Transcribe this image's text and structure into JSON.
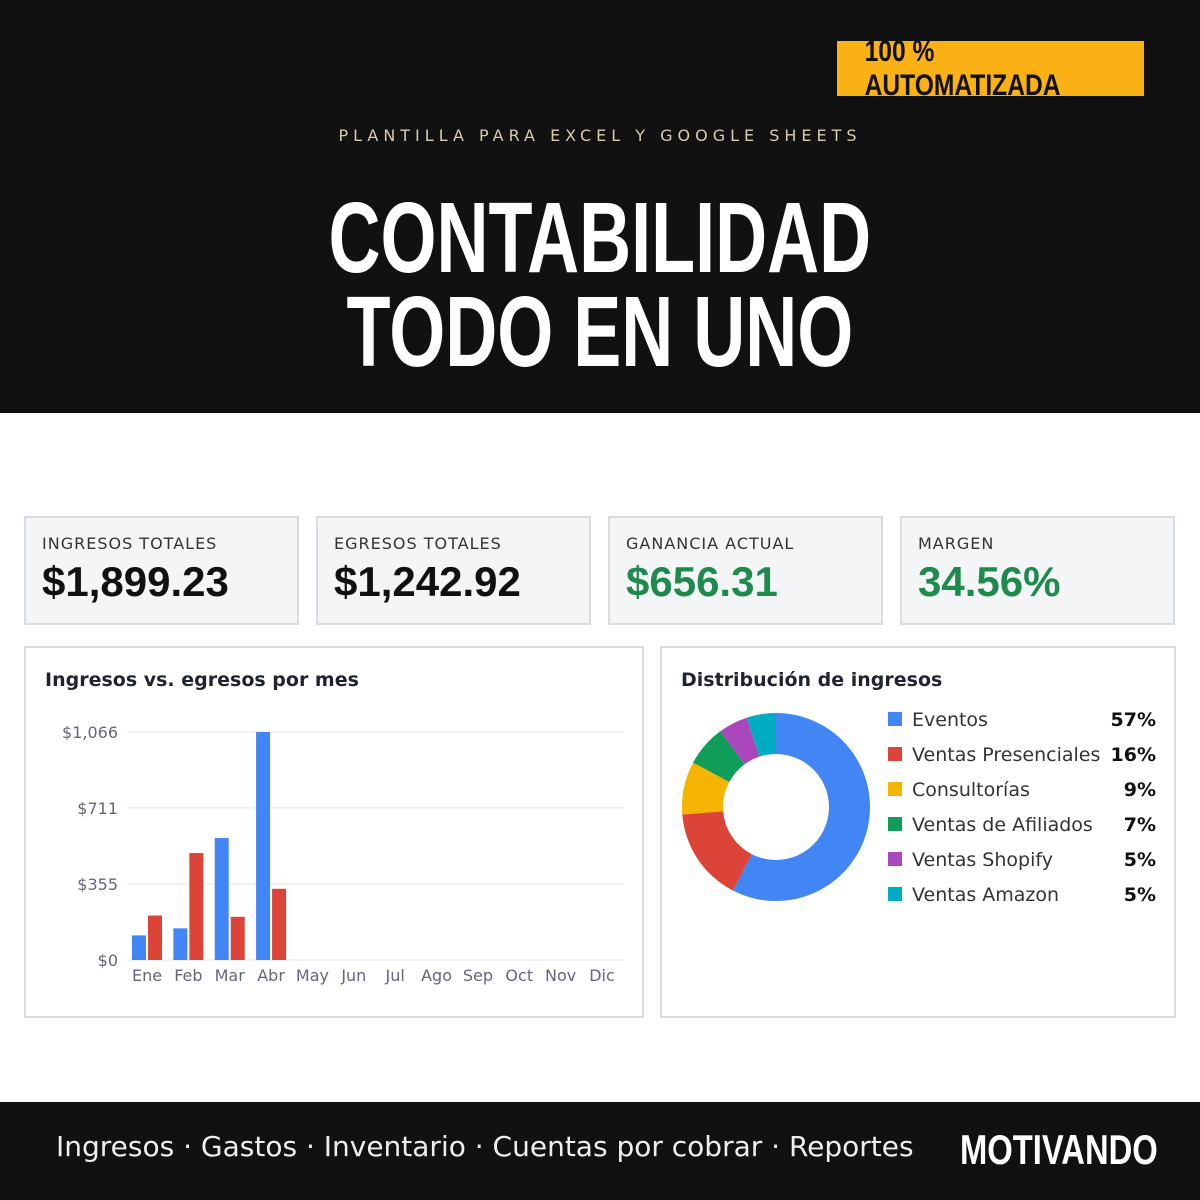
{
  "header": {
    "badge": "100 % AUTOMATIZADA",
    "subtitle": "PLANTILLA PARA EXCEL Y GOOGLE SHEETS",
    "title_lines": [
      "CONTABILIDAD",
      "TODO EN UNO"
    ]
  },
  "kpis": [
    {
      "label": "INGRESOS TOTALES",
      "value": "$1,899.23",
      "color": "#111111"
    },
    {
      "label": "EGRESOS TOTALES",
      "value": "$1,242.92",
      "color": "#111111"
    },
    {
      "label": "GANANCIA ACTUAL",
      "value": "$656.31",
      "color": "#1e8a4c"
    },
    {
      "label": "MARGEN",
      "value": "34.56%",
      "color": "#1e8a4c"
    }
  ],
  "chart_data": [
    {
      "type": "bar",
      "title": "Ingresos vs. egresos por mes",
      "categories": [
        "Ene",
        "Feb",
        "Mar",
        "Abr",
        "May",
        "Jun",
        "Jul",
        "Ago",
        "Sep",
        "Oct",
        "Nov",
        "Dic"
      ],
      "series": [
        {
          "color": "#4285f4",
          "values": [
            115,
            148,
            570,
            1066,
            null,
            null,
            null,
            null,
            null,
            null,
            null,
            null
          ]
        },
        {
          "color": "#db4437",
          "values": [
            208,
            500,
            202,
            333,
            null,
            null,
            null,
            null,
            null,
            null,
            null,
            null
          ]
        }
      ],
      "ylim": [
        0,
        1066
      ],
      "yticks": [
        {
          "value": 0,
          "label": "$0"
        },
        {
          "value": 355,
          "label": "$355"
        },
        {
          "value": 711,
          "label": "$711"
        },
        {
          "value": 1066,
          "label": "$1,066"
        }
      ],
      "grid": true
    },
    {
      "type": "donut",
      "title": "Distribución de ingresos",
      "categories": [
        "Eventos",
        "Ventas Presenciales",
        "Consultorías",
        "Ventas de Afiliados",
        "Ventas Shopify",
        "Ventas Amazon"
      ],
      "values": [
        57,
        16,
        9,
        7,
        5,
        5
      ],
      "value_labels": [
        "57%",
        "16%",
        "9%",
        "7%",
        "5%",
        "5%"
      ],
      "colors": [
        "#4285f4",
        "#db4437",
        "#f4b400",
        "#0f9d58",
        "#ab47bc",
        "#00acc1"
      ]
    }
  ],
  "footer": {
    "features": "Ingresos · Gastos · Inventario · Cuentas por cobrar · Reportes",
    "brand": "MOTIVANDO"
  }
}
